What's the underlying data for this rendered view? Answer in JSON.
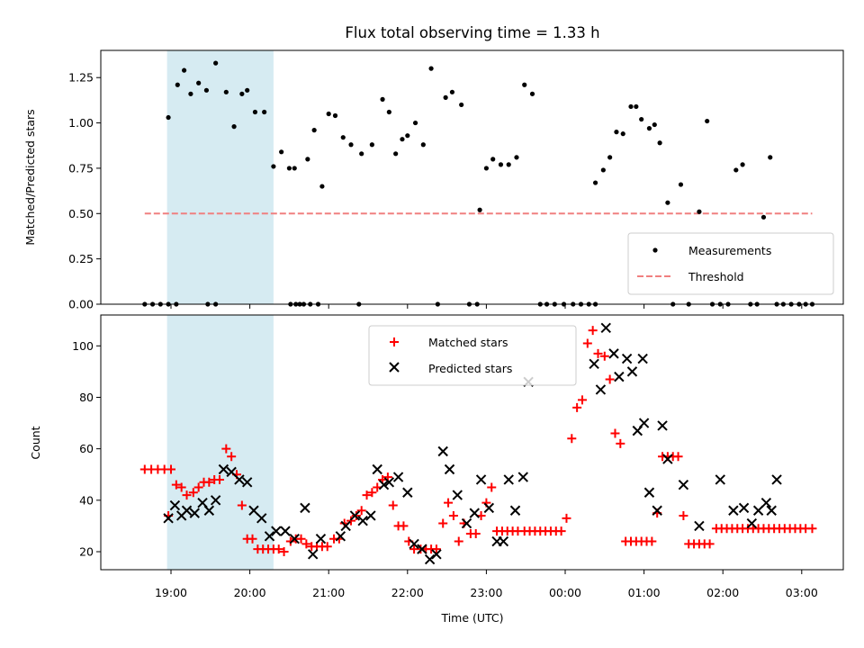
{
  "chart_data": [
    {
      "type": "scatter",
      "title": "Flux total observing time = 1.33 h",
      "ylabel": "Matched/Predicted stars",
      "xlabel": "",
      "ylim": [
        0,
        1.4
      ],
      "yticks": [
        "0.00",
        "0.25",
        "0.50",
        "0.75",
        "1.00",
        "1.25"
      ],
      "legend_position": "lower-right",
      "shaded_interval": [
        "18:57",
        "20:18"
      ],
      "colors": {
        "shade": "#add8e6",
        "measurements": "#000000",
        "threshold": "#f08080"
      },
      "series": [
        {
          "name": "Measurements",
          "marker": "dot",
          "x": [
            "18:40",
            "18:46",
            "18:52",
            "18:58",
            "19:04",
            "18:58",
            "19:05",
            "19:10",
            "19:15",
            "19:21",
            "19:27",
            "19:34",
            "19:42",
            "19:48",
            "19:54",
            "19:58",
            "20:04",
            "20:11",
            "20:18",
            "20:24",
            "20:30",
            "20:34",
            "20:38",
            "20:44",
            "20:49",
            "20:55",
            "21:00",
            "21:05",
            "21:11",
            "21:17",
            "21:23",
            "21:25",
            "21:33",
            "21:41",
            "21:46",
            "21:51",
            "21:56",
            "22:00",
            "22:06",
            "22:12",
            "22:18",
            "22:23",
            "22:29",
            "22:34",
            "22:41",
            "22:47",
            "22:53",
            "22:55",
            "23:00",
            "23:05",
            "23:11",
            "23:17",
            "23:23",
            "23:29",
            "23:35",
            "23:41",
            "23:46",
            "23:52",
            "23:59",
            "00:06",
            "00:12",
            "00:18",
            "00:23",
            "00:23",
            "00:29",
            "00:34",
            "00:39",
            "00:44",
            "00:50",
            "00:54",
            "00:58",
            "01:04",
            "01:08",
            "01:12",
            "01:18",
            "01:22",
            "01:28",
            "01:34",
            "01:42",
            "01:48",
            "01:52",
            "01:58",
            "02:04",
            "02:10",
            "02:15",
            "02:21",
            "02:26",
            "02:31",
            "02:36",
            "02:41",
            "02:46",
            "02:52",
            "02:58",
            "03:03",
            "03:08",
            "19:28",
            "19:34",
            "20:31",
            "20:35",
            "20:41",
            "20:46",
            "20:52"
          ],
          "y": [
            0,
            0,
            0,
            0,
            0,
            1.03,
            1.21,
            1.29,
            1.16,
            1.22,
            1.18,
            1.33,
            1.17,
            0.98,
            1.16,
            1.18,
            1.06,
            1.06,
            0.76,
            0.84,
            0.75,
            0.75,
            0,
            0.8,
            0.96,
            0.65,
            1.05,
            1.04,
            0.92,
            0.88,
            0,
            0.83,
            0.88,
            1.13,
            1.06,
            0.83,
            0.91,
            0.93,
            1.0,
            0.88,
            1.3,
            0,
            1.14,
            1.17,
            1.1,
            0,
            0,
            0.52,
            0.75,
            0.8,
            0.77,
            0.77,
            0.81,
            1.21,
            1.16,
            0,
            0,
            0,
            0,
            0,
            0,
            0,
            0,
            0.67,
            0.74,
            0.81,
            0.95,
            0.94,
            1.09,
            1.09,
            1.02,
            0.97,
            0.99,
            0.89,
            0.56,
            0,
            0.66,
            0,
            0.51,
            1.01,
            0,
            0,
            0,
            0.74,
            0.77,
            0,
            0,
            0.48,
            0.81,
            0,
            0,
            0,
            0,
            0,
            0,
            0,
            0,
            0,
            0,
            0,
            0,
            0
          ]
        },
        {
          "name": "Threshold",
          "marker": "dashed-line",
          "x": [
            "18:40",
            "03:08"
          ],
          "y": [
            0.5,
            0.5
          ]
        }
      ]
    },
    {
      "type": "scatter",
      "title": "",
      "xlabel": "Time (UTC)",
      "ylabel": "Count",
      "ylim": [
        13,
        112
      ],
      "yticks": [
        "20",
        "40",
        "60",
        "80",
        "100"
      ],
      "xticks": [
        "19:00",
        "20:00",
        "21:00",
        "22:00",
        "23:00",
        "00:00",
        "01:00",
        "02:00",
        "03:00"
      ],
      "legend_position": "top-center",
      "shaded_interval": [
        "18:57",
        "20:18"
      ],
      "colors": {
        "shade": "#add8e6",
        "matched": "#ff0000",
        "predicted": "#000000"
      },
      "series": [
        {
          "name": "Matched stars",
          "marker": "plus",
          "x": [
            "18:40",
            "18:45",
            "18:50",
            "18:55",
            "19:00",
            "18:58",
            "19:04",
            "19:08",
            "19:12",
            "19:17",
            "19:21",
            "19:25",
            "19:29",
            "19:33",
            "19:37",
            "19:42",
            "19:46",
            "19:50",
            "19:54",
            "19:58",
            "20:02",
            "20:06",
            "20:10",
            "20:14",
            "20:18",
            "20:22",
            "20:26",
            "20:31",
            "20:35",
            "20:39",
            "20:43",
            "20:47",
            "20:51",
            "20:55",
            "20:59",
            "21:04",
            "21:08",
            "21:12",
            "21:17",
            "21:21",
            "21:25",
            "21:29",
            "21:33",
            "21:37",
            "21:41",
            "21:45",
            "21:49",
            "21:53",
            "21:57",
            "22:01",
            "22:05",
            "22:10",
            "22:14",
            "22:18",
            "22:22",
            "22:27",
            "22:31",
            "22:35",
            "22:39",
            "22:43",
            "22:48",
            "22:52",
            "22:56",
            "23:00",
            "23:04",
            "23:08",
            "23:12",
            "23:16",
            "23:20",
            "23:24",
            "23:29",
            "23:33",
            "23:37",
            "23:41",
            "23:45",
            "23:49",
            "23:53",
            "23:57",
            "00:01",
            "00:05",
            "00:09",
            "00:13",
            "00:17",
            "00:21",
            "00:25",
            "00:30",
            "00:34",
            "00:38",
            "00:42",
            "00:46",
            "00:50",
            "00:54",
            "00:58",
            "01:02",
            "01:06",
            "01:10",
            "01:14",
            "01:18",
            "01:22",
            "01:26",
            "01:30",
            "01:34",
            "01:38",
            "01:42",
            "01:46",
            "01:50",
            "01:55",
            "01:59",
            "02:03",
            "02:07",
            "02:11",
            "02:15",
            "02:19",
            "02:23",
            "02:27",
            "02:31",
            "02:35",
            "02:39",
            "02:43",
            "02:47",
            "02:51",
            "02:55",
            "02:59",
            "03:03",
            "03:08"
          ],
          "y": [
            52,
            52,
            52,
            52,
            52,
            34,
            46,
            45,
            42,
            43,
            45,
            47,
            47,
            48,
            48,
            60,
            57,
            50,
            38,
            25,
            25,
            21,
            21,
            21,
            21,
            21,
            20,
            24,
            25,
            25,
            23,
            22,
            22,
            22,
            22,
            25,
            25,
            31,
            32,
            34,
            36,
            42,
            43,
            45,
            48,
            49,
            38,
            30,
            30,
            24,
            21,
            21,
            21,
            21,
            21,
            31,
            39,
            34,
            24,
            31,
            27,
            27,
            34,
            39,
            45,
            28,
            28,
            28,
            28,
            28,
            28,
            28,
            28,
            28,
            28,
            28,
            28,
            28,
            33,
            64,
            76,
            79,
            101,
            106,
            97,
            96,
            87,
            66,
            62,
            24,
            24,
            24,
            24,
            24,
            24,
            35,
            57,
            57,
            57,
            57,
            34,
            23,
            23,
            23,
            23,
            23,
            29,
            29,
            29,
            29,
            29,
            29,
            29,
            29,
            29,
            29,
            29,
            29,
            29,
            29,
            29,
            29,
            29,
            29,
            29
          ]
        },
        {
          "name": "Predicted stars",
          "marker": "x",
          "x": [
            "18:58",
            "19:03",
            "19:08",
            "19:12",
            "19:18",
            "19:24",
            "19:29",
            "19:34",
            "19:40",
            "19:46",
            "19:52",
            "19:58",
            "20:03",
            "20:09",
            "20:15",
            "20:20",
            "20:27",
            "20:34",
            "20:42",
            "20:48",
            "20:54",
            "21:09",
            "21:13",
            "21:20",
            "21:26",
            "21:32",
            "21:37",
            "21:42",
            "21:46",
            "21:53",
            "22:00",
            "22:05",
            "22:11",
            "22:17",
            "22:22",
            "22:27",
            "22:32",
            "22:38",
            "22:45",
            "22:51",
            "22:56",
            "23:02",
            "23:08",
            "23:13",
            "23:17",
            "23:22",
            "23:28",
            "23:32",
            "00:22",
            "00:27",
            "00:31",
            "00:37",
            "00:41",
            "00:47",
            "00:51",
            "00:55",
            "01:00",
            "01:04",
            "01:10",
            "01:14",
            "01:18",
            "01:30",
            "01:42",
            "01:58",
            "02:08",
            "02:16",
            "02:22",
            "02:27",
            "02:33",
            "02:37",
            "02:41",
            "00:59"
          ],
          "y": [
            33,
            38,
            34,
            36,
            35,
            39,
            36,
            40,
            52,
            51,
            48,
            47,
            36,
            33,
            26,
            28,
            28,
            25,
            37,
            19,
            25,
            26,
            30,
            34,
            32,
            34,
            52,
            46,
            47,
            49,
            43,
            23,
            21,
            17,
            19,
            59,
            52,
            42,
            31,
            35,
            48,
            37,
            24,
            24,
            48,
            36,
            49,
            86,
            93,
            83,
            107,
            97,
            88,
            95,
            90,
            67,
            70,
            43,
            36,
            69,
            56,
            46,
            30,
            48,
            36,
            37,
            31,
            36,
            39,
            36,
            48,
            95
          ]
        }
      ]
    }
  ]
}
